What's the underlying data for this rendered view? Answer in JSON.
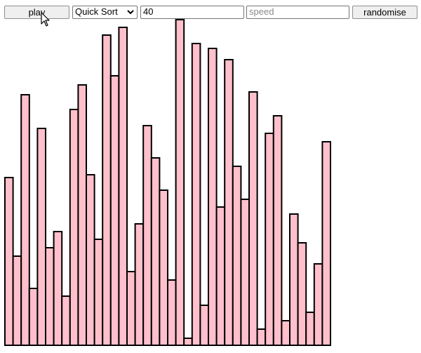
{
  "controls": {
    "play_label": "play",
    "algorithm_selected": "Quick Sort",
    "count_value": "40",
    "speed_placeholder": "speed",
    "randomise_label": "randomise"
  },
  "icons": {
    "select_caret": "chevron-down-icon",
    "cursor": "mouse-pointer-icon"
  },
  "colors": {
    "bar_fill": "#ffc0cb",
    "bar_stroke": "#000000"
  },
  "chart_data": {
    "type": "bar",
    "values": [
      239,
      127,
      357,
      81,
      309,
      139,
      162,
      70,
      336,
      371,
      243,
      151,
      442,
      384,
      453,
      105,
      173,
      313,
      267,
      221,
      93,
      464,
      10,
      430,
      57,
      423,
      197,
      407,
      255,
      208,
      361,
      23,
      302,
      327,
      35,
      187,
      146,
      47,
      116,
      290
    ],
    "ylim": [
      0,
      470
    ]
  }
}
